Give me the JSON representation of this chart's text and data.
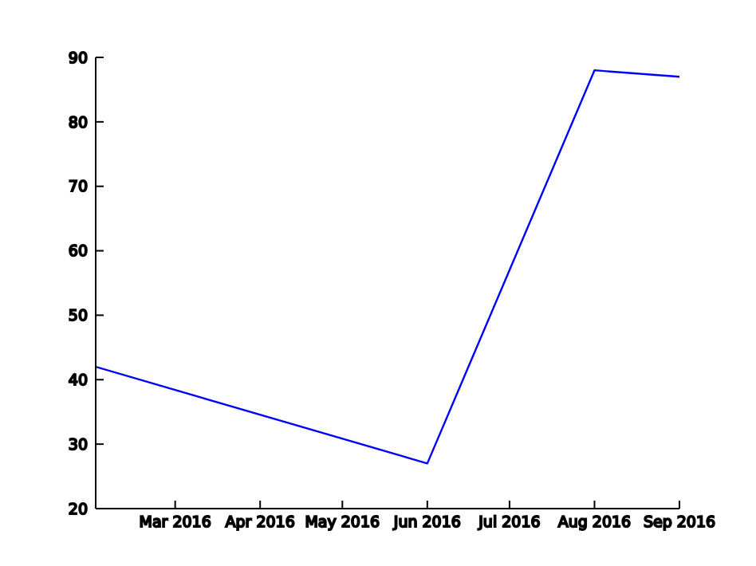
{
  "chart_data": {
    "type": "line",
    "x": [
      "2016-02-01",
      "2016-06-01",
      "2016-08-01",
      "2016-09-01"
    ],
    "series": [
      {
        "color": "#0000ff",
        "values": [
          42,
          27,
          88,
          87
        ]
      }
    ],
    "xlim": [
      "2016-02-01",
      "2016-09-01"
    ],
    "xticks": [
      {
        "value": "2016-03",
        "label": "Mar 2016"
      },
      {
        "value": "2016-04",
        "label": "Apr 2016"
      },
      {
        "value": "2016-05",
        "label": "May 2016"
      },
      {
        "value": "2016-06",
        "label": "Jun 2016"
      },
      {
        "value": "2016-07",
        "label": "Jul 2016"
      },
      {
        "value": "2016-08",
        "label": "Aug 2016"
      },
      {
        "value": "2016-09",
        "label": "Sep 2016"
      }
    ],
    "ylim": [
      20,
      90
    ],
    "yticks": [
      20,
      30,
      40,
      50,
      60,
      70,
      80,
      90
    ],
    "grid": false,
    "legend": false,
    "marker": "none",
    "line_style": "solid"
  }
}
